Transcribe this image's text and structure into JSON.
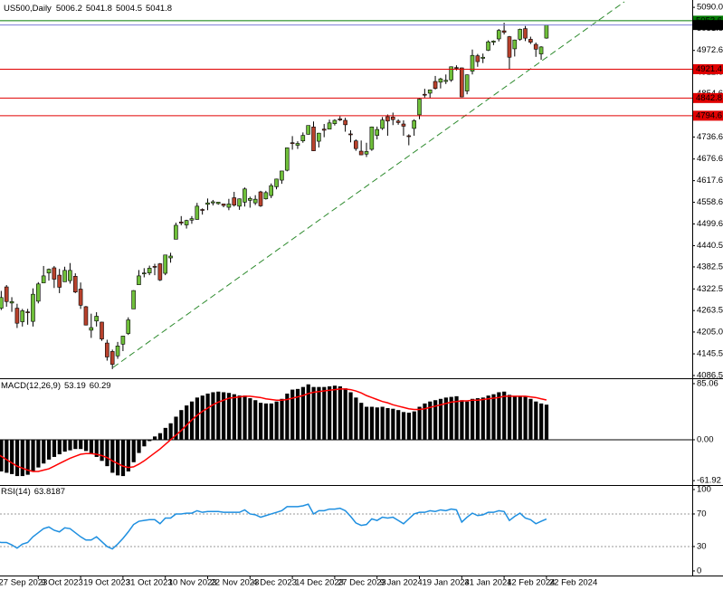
{
  "chart_data": [
    {
      "type": "candlestick",
      "title": "US500,Daily",
      "categories": [
        "27 Sep 2023",
        null,
        null,
        null,
        null,
        null,
        null,
        null,
        "9 Oct 2023",
        null,
        null,
        null,
        null,
        null,
        null,
        null,
        "19 Oct 2023",
        null,
        null,
        null,
        null,
        null,
        null,
        null,
        "31 Oct 2023",
        null,
        null,
        null,
        null,
        null,
        null,
        null,
        "10 Nov 2023",
        null,
        null,
        null,
        null,
        null,
        null,
        null,
        "22 Nov 2023",
        null,
        null,
        null,
        null,
        null,
        null,
        null,
        "4 Dec 2023",
        null,
        null,
        null,
        null,
        null,
        null,
        null,
        "14 Dec 2023",
        null,
        null,
        null,
        null,
        null,
        null,
        null,
        "27 Dec 2023",
        null,
        null,
        null,
        null,
        null,
        null,
        null,
        "9 Jan 2024",
        null,
        null,
        null,
        null,
        null,
        null,
        null,
        "19 Jan 2024",
        null,
        null,
        null,
        null,
        null,
        null,
        null,
        "31 Jan 2024",
        null,
        null,
        null,
        null,
        null,
        null,
        null,
        "12 Feb 2024",
        null,
        null,
        null,
        null,
        null,
        null,
        null,
        "22 Feb 2024"
      ],
      "open": [
        4282,
        4270,
        4328,
        4284,
        4270,
        4233,
        4260,
        4234,
        4289,
        4339,
        4366,
        4380,
        4360,
        4342,
        4345,
        4357,
        4322,
        4274,
        4210,
        4235,
        4232,
        4175,
        4152,
        4140,
        4172,
        4201,
        4268,
        4334,
        4364,
        4366,
        4384,
        4391,
        4365,
        4407,
        4458,
        4505,
        4497,
        4510,
        4512,
        4539,
        4553,
        4557,
        4555,
        4554,
        4545,
        4571,
        4548,
        4559,
        4564,
        4557,
        4587,
        4568,
        4577,
        4601,
        4619,
        4646,
        4721,
        4714,
        4726,
        4744,
        4764,
        4725,
        4758,
        4758,
        4773,
        4786,
        4782,
        4745,
        4726,
        4698,
        4690,
        4703,
        4741,
        4760,
        4792,
        4791,
        4780,
        4772,
        4740,
        4760,
        4797,
        4853,
        4856,
        4888,
        4886,
        4888,
        4892,
        4926,
        4925,
        4862,
        4916,
        4958,
        4951,
        4973,
        4995,
        5004,
        5026,
        5010,
        4977,
        5003,
        5032,
        5003,
        4989,
        4963,
        5006.2
      ],
      "high": [
        4292,
        4317,
        4333,
        4300,
        4282,
        4268,
        4268,
        4324,
        4341,
        4385,
        4378,
        4385,
        4377,
        4383,
        4393,
        4365,
        4340,
        4276,
        4255,
        4259,
        4233,
        4184,
        4157,
        4178,
        4195,
        4245,
        4319,
        4374,
        4379,
        4386,
        4391,
        4393,
        4415,
        4421,
        4503,
        4521,
        4511,
        4521,
        4557,
        4542,
        4569,
        4565,
        4560,
        4555,
        4568,
        4587,
        4569,
        4599,
        4574,
        4578,
        4590,
        4590,
        4610,
        4623,
        4644,
        4708,
        4739,
        4725,
        4749,
        4768,
        4779,
        4748,
        4772,
        4784,
        4785,
        4793,
        4789,
        4755,
        4730,
        4727,
        4721,
        4765,
        4765,
        4791,
        4798,
        4803,
        4785,
        4782,
        4744,
        4785,
        4842,
        4868,
        4866,
        4903,
        4898,
        4907,
        4929,
        4932,
        4926,
        4907,
        4975,
        4963,
        4964,
        5000,
        5000,
        5031,
        5048,
        5012,
        5002,
        5032,
        5039,
        5010,
        4994,
        4984,
        5041.8
      ],
      "low": [
        4238,
        4265,
        4274,
        4260,
        4216,
        4220,
        4225,
        4220,
        4283,
        4339,
        4345,
        4325,
        4311,
        4342,
        4337,
        4311,
        4268,
        4223,
        4189,
        4220,
        4181,
        4127,
        4104,
        4132,
        4153,
        4197,
        4268,
        4334,
        4354,
        4360,
        4360,
        4344,
        4360,
        4394,
        4458,
        4496,
        4487,
        4500,
        4511,
        4525,
        4537,
        4550,
        4552,
        4545,
        4537,
        4547,
        4538,
        4547,
        4544,
        4551,
        4546,
        4566,
        4570,
        4594,
        4609,
        4643,
        4702,
        4704,
        4721,
        4743,
        4698,
        4708,
        4736,
        4758,
        4768,
        4780,
        4751,
        4722,
        4699,
        4687,
        4682,
        4699,
        4730,
        4756,
        4740,
        4769,
        4770,
        4740,
        4714,
        4740,
        4785,
        4844,
        4842,
        4866,
        4869,
        4881,
        4887,
        4918,
        4845,
        4853,
        4907,
        4928,
        4938,
        4971,
        4987,
        4997,
        5016,
        4920,
        4956,
        4999,
        4998,
        4990,
        4955,
        4947,
        5004.5
      ],
      "close": [
        4274,
        4299,
        4288,
        4288,
        4229,
        4263,
        4258,
        4308,
        4336,
        4358,
        4376,
        4349,
        4327,
        4373,
        4373,
        4314,
        4278,
        4224,
        4217,
        4248,
        4186,
        4137,
        4117,
        4167,
        4194,
        4238,
        4318,
        4358,
        4366,
        4379,
        4383,
        4347,
        4415,
        4412,
        4496,
        4502,
        4509,
        4514,
        4548,
        4538,
        4557,
        4560,
        4559,
        4550,
        4554,
        4551,
        4568,
        4595,
        4569,
        4567,
        4549,
        4585,
        4604,
        4622,
        4644,
        4707,
        4720,
        4719,
        4741,
        4768,
        4699,
        4747,
        4755,
        4775,
        4782,
        4783,
        4770,
        4743,
        4705,
        4688,
        4697,
        4764,
        4757,
        4783,
        4780,
        4784,
        4776,
        4766,
        4739,
        4781,
        4840,
        4851,
        4865,
        4869,
        4895,
        4891,
        4928,
        4925,
        4846,
        4906,
        4959,
        4942,
        4954,
        4996,
        4998,
        5027,
        5022,
        4954,
        5001,
        5030,
        5006,
        4995,
        4976,
        4982,
        5041.8
      ],
      "up_color": "#6fbf3a",
      "down_color": "#b8412c",
      "ylim": [
        4079,
        5110
      ],
      "yticks": [
        {
          "value": 5090,
          "label": "5090.0"
        },
        5031.8,
        4972.6,
        4912.6,
        4854.6,
        4736.6,
        4676.6,
        4617.6,
        4558.6,
        4499.6,
        4440.5,
        4382.5,
        4322.5,
        4263.5,
        {
          "value": 4205,
          "label": "4205.0"
        },
        4145.5,
        4086.5
      ],
      "hlines": [
        {
          "value": 5053.6,
          "color": "#007a00"
        },
        {
          "value": 4921.4,
          "color": "#e00000"
        },
        {
          "value": 4842.8,
          "color": "#e00000"
        },
        {
          "value": 4794.6,
          "color": "#e00000"
        }
      ],
      "bid_color": "#7b7bd6"
    },
    {
      "type": "macd",
      "title": "MACD(12,26,9)",
      "series": [
        {
          "color": "#000000",
          "values": [
            -45,
            -48,
            -50,
            -52,
            -55,
            -55,
            -53,
            -48,
            -42,
            -36,
            -30,
            -26,
            -22,
            -18,
            -16,
            -14,
            -14,
            -17,
            -22,
            -26,
            -32,
            -40,
            -50,
            -54,
            -55,
            -48,
            -34,
            -20,
            -10,
            -2,
            5,
            10,
            18,
            25,
            35,
            45,
            52,
            58,
            64,
            67,
            70,
            72,
            73,
            72,
            71,
            69,
            67,
            67,
            63,
            60,
            56,
            55,
            55,
            58,
            62,
            70,
            76,
            77,
            80,
            84,
            80,
            80,
            80,
            81,
            82,
            81,
            78,
            72,
            64,
            56,
            50,
            50,
            49,
            50,
            48,
            47,
            45,
            42,
            41,
            43,
            50,
            55,
            58,
            60,
            62,
            64,
            65,
            66,
            60,
            58,
            62,
            63,
            64,
            67,
            69,
            72,
            73,
            68,
            66,
            66,
            65,
            62,
            58,
            55,
            53.19
          ]
        },
        {
          "color": "#ff0000",
          "values": [
            -20,
            -25,
            -30,
            -35,
            -40,
            -43,
            -46,
            -48,
            -48,
            -46,
            -44,
            -40,
            -36,
            -32,
            -28,
            -25,
            -22,
            -21,
            -21,
            -22,
            -24,
            -27,
            -32,
            -36,
            -40,
            -42,
            -41,
            -37,
            -32,
            -26,
            -20,
            -14,
            -7,
            0,
            7,
            14,
            22,
            30,
            37,
            43,
            48,
            53,
            57,
            60,
            63,
            64,
            65,
            66,
            66,
            65,
            64,
            62,
            61,
            60,
            60,
            61,
            63,
            65,
            67,
            70,
            72,
            73,
            74,
            75,
            76,
            77,
            77,
            76,
            74,
            71,
            67,
            64,
            61,
            58,
            56,
            53,
            51,
            49,
            47,
            46,
            46,
            47,
            49,
            51,
            53,
            55,
            57,
            58,
            59,
            59,
            60,
            60,
            61,
            62,
            63,
            64,
            66,
            66,
            66,
            66,
            66,
            65,
            64,
            62,
            60.29
          ]
        }
      ],
      "ylim": [
        -68.6,
        90.5
      ],
      "yticks": [
        85.06,
        {
          "value": 0,
          "label": "0.00"
        },
        -61.92
      ]
    },
    {
      "type": "line",
      "title": "RSI(14)",
      "series": [
        {
          "color": "#1e8fe0",
          "values": [
            36,
            35,
            35,
            32,
            28,
            33,
            35,
            42,
            47,
            52,
            54,
            50,
            48,
            53,
            52,
            47,
            42,
            38,
            38,
            42,
            36,
            30,
            27,
            33,
            40,
            48,
            57,
            61,
            62,
            63,
            63,
            58,
            65,
            65,
            70,
            70,
            71,
            71,
            74,
            72,
            73,
            73,
            73,
            72,
            72,
            72,
            72,
            75,
            70,
            69,
            66,
            68,
            70,
            72,
            74,
            79,
            79,
            79,
            80,
            82,
            70,
            74,
            74,
            76,
            76,
            77,
            74,
            67,
            59,
            56,
            57,
            64,
            62,
            66,
            65,
            66,
            62,
            58,
            64,
            70,
            72,
            72,
            74,
            73,
            75,
            74,
            76,
            75,
            60,
            66,
            71,
            68,
            69,
            72,
            72,
            74,
            73,
            62,
            67,
            71,
            65,
            63,
            58,
            61,
            63.8187
          ]
        }
      ],
      "ylim": [
        -5.6,
        103.3
      ],
      "yticks": [
        100,
        70,
        30,
        0
      ],
      "levels": [
        70,
        30
      ]
    }
  ]
}
